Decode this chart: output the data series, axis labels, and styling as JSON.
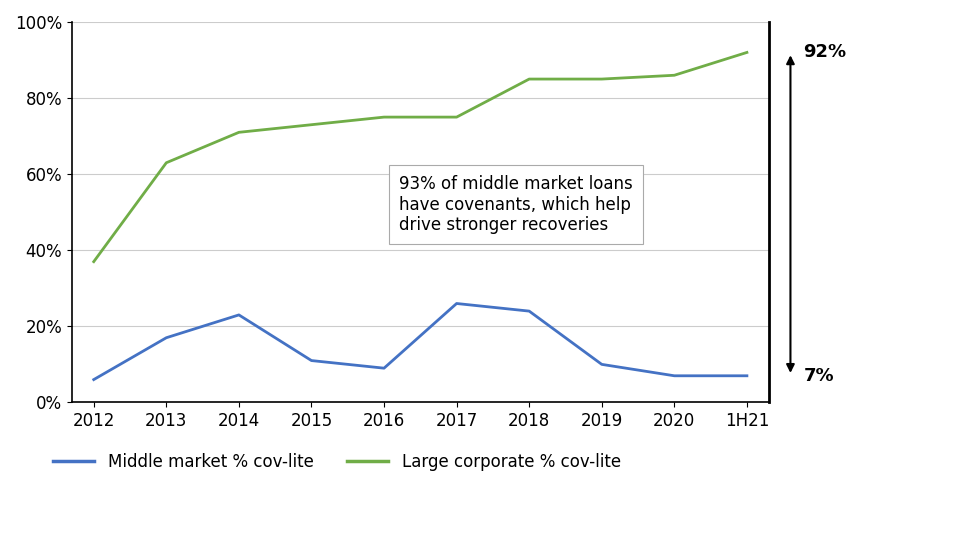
{
  "x_labels": [
    "2012",
    "2013",
    "2014",
    "2015",
    "2016",
    "2017",
    "2018",
    "2019",
    "2020",
    "1H21"
  ],
  "x_values": [
    0,
    1,
    2,
    3,
    4,
    5,
    6,
    7,
    8,
    9
  ],
  "middle_market": [
    6,
    17,
    23,
    11,
    9,
    26,
    24,
    10,
    7,
    7
  ],
  "large_corporate": [
    37,
    63,
    71,
    73,
    75,
    75,
    85,
    85,
    86,
    92
  ],
  "middle_market_color": "#4472C4",
  "large_corporate_color": "#70AD47",
  "annotation_text": "93% of middle market loans\nhave covenants, which help\ndrive stronger recoveries",
  "arrow_top_label": "92%",
  "arrow_bottom_label": "7%",
  "legend_middle": "Middle market % cov-lite",
  "legend_large": "Large corporate % cov-lite",
  "ylim": [
    0,
    100
  ],
  "yticks": [
    0,
    20,
    40,
    60,
    80,
    100
  ],
  "ytick_labels": [
    "0%",
    "20%",
    "40%",
    "60%",
    "80%",
    "100%"
  ],
  "background_color": "#ffffff",
  "grid_color": "#cccccc",
  "line_width": 2.0
}
